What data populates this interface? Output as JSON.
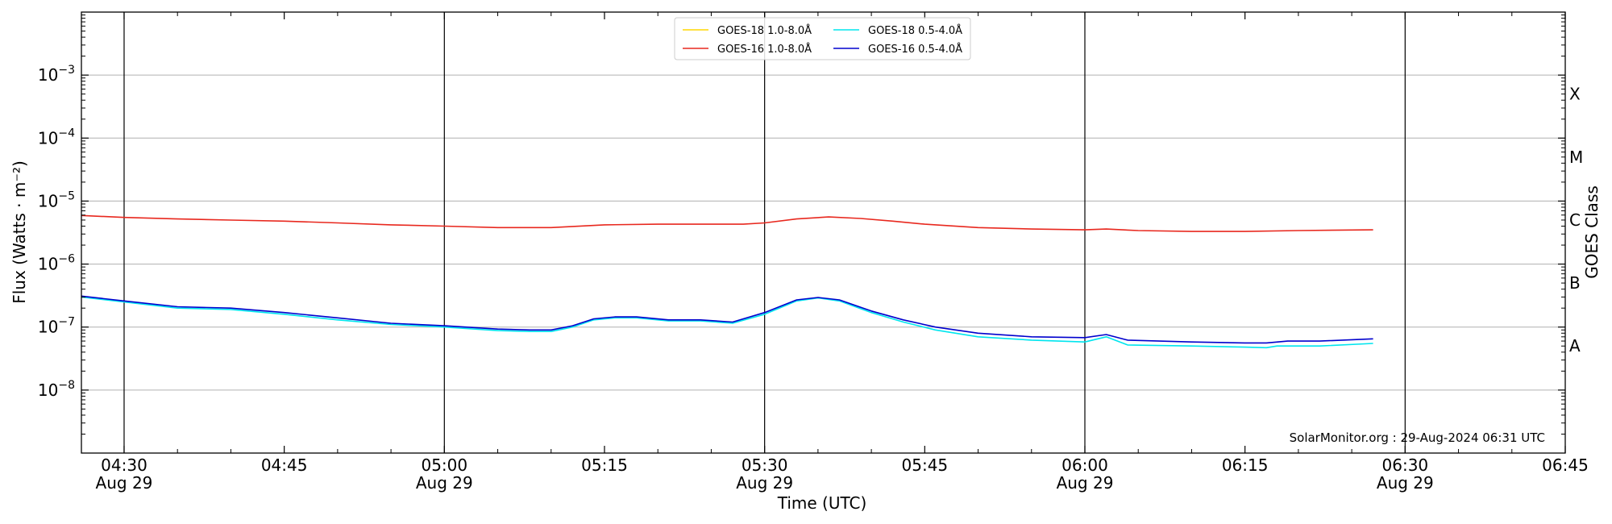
{
  "chart_data": {
    "type": "line",
    "title": "",
    "xlabel": "Time (UTC)",
    "ylabel": "Flux (Watts · m⁻²)",
    "y2label": "GOES Class",
    "yscale": "log",
    "xlim": [
      "04:26",
      "06:45"
    ],
    "ylim": [
      1e-09,
      0.01
    ],
    "grid": "horizontal",
    "legend_placement": "top-center",
    "x_ticks": [
      {
        "time": "04:30",
        "label": "04:30",
        "date": "Aug 29"
      },
      {
        "time": "04:45",
        "label": "04:45",
        "date": ""
      },
      {
        "time": "05:00",
        "label": "05:00",
        "date": "Aug 29"
      },
      {
        "time": "05:15",
        "label": "05:15",
        "date": ""
      },
      {
        "time": "05:30",
        "label": "05:30",
        "date": "Aug 29"
      },
      {
        "time": "05:45",
        "label": "05:45",
        "date": ""
      },
      {
        "time": "06:00",
        "label": "06:00",
        "date": "Aug 29"
      },
      {
        "time": "06:15",
        "label": "06:15",
        "date": ""
      },
      {
        "time": "06:30",
        "label": "06:30",
        "date": "Aug 29"
      },
      {
        "time": "06:45",
        "label": "06:45",
        "date": ""
      }
    ],
    "vertical_lines": [
      "04:30",
      "05:00",
      "05:30",
      "06:00",
      "06:30"
    ],
    "y_ticks": [
      {
        "exp": -8,
        "label": "10",
        "sup": "−8"
      },
      {
        "exp": -7,
        "label": "10",
        "sup": "−7"
      },
      {
        "exp": -6,
        "label": "10",
        "sup": "−6"
      },
      {
        "exp": -5,
        "label": "10",
        "sup": "−5"
      },
      {
        "exp": -4,
        "label": "10",
        "sup": "−4"
      },
      {
        "exp": -3,
        "label": "10",
        "sup": "−3"
      }
    ],
    "goes_classes": [
      {
        "label": "A",
        "value": 5e-08
      },
      {
        "label": "B",
        "value": 5e-07
      },
      {
        "label": "C",
        "value": 5e-06
      },
      {
        "label": "M",
        "value": 5e-05
      },
      {
        "label": "X",
        "value": 0.0005
      }
    ],
    "series": [
      {
        "name": "GOES-18 1.0-8.0Å",
        "color": "#ffd700",
        "points": []
      },
      {
        "name": "GOES-16 1.0-8.0Å",
        "color": "#e8281e",
        "points": [
          [
            "04:26",
            5.9e-06
          ],
          [
            "04:30",
            5.5e-06
          ],
          [
            "04:35",
            5.2e-06
          ],
          [
            "04:40",
            5e-06
          ],
          [
            "04:45",
            4.8e-06
          ],
          [
            "04:50",
            4.5e-06
          ],
          [
            "04:55",
            4.2e-06
          ],
          [
            "05:00",
            4e-06
          ],
          [
            "05:05",
            3.8e-06
          ],
          [
            "05:10",
            3.8e-06
          ],
          [
            "05:15",
            4.2e-06
          ],
          [
            "05:20",
            4.3e-06
          ],
          [
            "05:25",
            4.3e-06
          ],
          [
            "05:28",
            4.3e-06
          ],
          [
            "05:30",
            4.5e-06
          ],
          [
            "05:33",
            5.2e-06
          ],
          [
            "05:36",
            5.6e-06
          ],
          [
            "05:39",
            5.3e-06
          ],
          [
            "05:42",
            4.8e-06
          ],
          [
            "05:45",
            4.3e-06
          ],
          [
            "05:50",
            3.8e-06
          ],
          [
            "05:55",
            3.6e-06
          ],
          [
            "06:00",
            3.5e-06
          ],
          [
            "06:02",
            3.6e-06
          ],
          [
            "06:05",
            3.4e-06
          ],
          [
            "06:10",
            3.3e-06
          ],
          [
            "06:15",
            3.3e-06
          ],
          [
            "06:20",
            3.4e-06
          ],
          [
            "06:27",
            3.5e-06
          ]
        ]
      },
      {
        "name": "GOES-18 0.5-4.0Å",
        "color": "#00e5ee",
        "points": [
          [
            "04:26",
            3e-07
          ],
          [
            "04:30",
            2.5e-07
          ],
          [
            "04:35",
            2e-07
          ],
          [
            "04:40",
            1.9e-07
          ],
          [
            "04:45",
            1.6e-07
          ],
          [
            "04:50",
            1.3e-07
          ],
          [
            "04:55",
            1.1e-07
          ],
          [
            "05:00",
            1e-07
          ],
          [
            "05:05",
            8.8e-08
          ],
          [
            "05:08",
            8.5e-08
          ],
          [
            "05:10",
            8.5e-08
          ],
          [
            "05:12",
            1e-07
          ],
          [
            "05:14",
            1.3e-07
          ],
          [
            "05:16",
            1.4e-07
          ],
          [
            "05:18",
            1.4e-07
          ],
          [
            "05:21",
            1.25e-07
          ],
          [
            "05:24",
            1.25e-07
          ],
          [
            "05:27",
            1.15e-07
          ],
          [
            "05:30",
            1.6e-07
          ],
          [
            "05:33",
            2.6e-07
          ],
          [
            "05:35",
            2.9e-07
          ],
          [
            "05:37",
            2.6e-07
          ],
          [
            "05:40",
            1.7e-07
          ],
          [
            "05:43",
            1.2e-07
          ],
          [
            "05:46",
            9e-08
          ],
          [
            "05:50",
            7e-08
          ],
          [
            "05:55",
            6.2e-08
          ],
          [
            "06:00",
            5.8e-08
          ],
          [
            "06:02",
            7e-08
          ],
          [
            "06:04",
            5.2e-08
          ],
          [
            "06:10",
            5e-08
          ],
          [
            "06:15",
            4.8e-08
          ],
          [
            "06:17",
            4.7e-08
          ],
          [
            "06:18",
            5e-08
          ],
          [
            "06:22",
            5e-08
          ],
          [
            "06:27",
            5.5e-08
          ]
        ]
      },
      {
        "name": "GOES-16 0.5-4.0Å",
        "color": "#0000cd",
        "points": [
          [
            "04:26",
            3.1e-07
          ],
          [
            "04:30",
            2.6e-07
          ],
          [
            "04:35",
            2.1e-07
          ],
          [
            "04:40",
            2e-07
          ],
          [
            "04:45",
            1.7e-07
          ],
          [
            "04:50",
            1.4e-07
          ],
          [
            "04:55",
            1.15e-07
          ],
          [
            "05:00",
            1.05e-07
          ],
          [
            "05:05",
            9.3e-08
          ],
          [
            "05:08",
            9e-08
          ],
          [
            "05:10",
            9e-08
          ],
          [
            "05:12",
            1.05e-07
          ],
          [
            "05:14",
            1.35e-07
          ],
          [
            "05:16",
            1.45e-07
          ],
          [
            "05:18",
            1.45e-07
          ],
          [
            "05:21",
            1.3e-07
          ],
          [
            "05:24",
            1.3e-07
          ],
          [
            "05:27",
            1.2e-07
          ],
          [
            "05:30",
            1.7e-07
          ],
          [
            "05:33",
            2.7e-07
          ],
          [
            "05:35",
            2.95e-07
          ],
          [
            "05:37",
            2.7e-07
          ],
          [
            "05:40",
            1.8e-07
          ],
          [
            "05:43",
            1.3e-07
          ],
          [
            "05:46",
            1e-07
          ],
          [
            "05:50",
            8e-08
          ],
          [
            "05:55",
            7e-08
          ],
          [
            "06:00",
            6.8e-08
          ],
          [
            "06:02",
            7.6e-08
          ],
          [
            "06:04",
            6.2e-08
          ],
          [
            "06:10",
            5.8e-08
          ],
          [
            "06:15",
            5.6e-08
          ],
          [
            "06:17",
            5.6e-08
          ],
          [
            "06:19",
            6e-08
          ],
          [
            "06:22",
            6e-08
          ],
          [
            "06:27",
            6.5e-08
          ]
        ]
      }
    ],
    "credit": "SolarMonitor.org : 29-Aug-2024 06:31 UTC"
  }
}
